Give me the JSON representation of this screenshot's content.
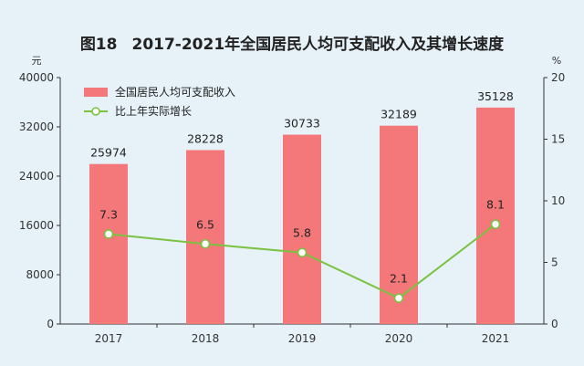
{
  "figure": {
    "label": "图18",
    "title": "2017-2021年全国居民人均可支配收入及其增长速度"
  },
  "chart_data": {
    "type": "bar",
    "categories": [
      "2017",
      "2018",
      "2019",
      "2020",
      "2021"
    ],
    "series": [
      {
        "name": "全国居民人均可支配收入",
        "type": "bar",
        "axis": "left",
        "color": "#f4787a",
        "values": [
          25974,
          28228,
          30733,
          32189,
          35128
        ],
        "labels": [
          "25974",
          "28228",
          "30733",
          "32189",
          "35128"
        ]
      },
      {
        "name": "比上年实际增长",
        "type": "line",
        "axis": "right",
        "color": "#7cc242",
        "values": [
          7.3,
          6.5,
          5.8,
          2.1,
          8.1
        ],
        "labels": [
          "7.3",
          "6.5",
          "5.8",
          "2.1",
          "8.1"
        ]
      }
    ],
    "left_axis": {
      "unit": "元",
      "ylim": [
        0,
        40000
      ],
      "ticks": [
        0,
        8000,
        16000,
        24000,
        32000,
        40000
      ],
      "tick_labels": [
        "0",
        "8000",
        "16000",
        "24000",
        "32000",
        "40000"
      ]
    },
    "right_axis": {
      "unit": "%",
      "ylim": [
        0,
        20
      ],
      "ticks": [
        0,
        5,
        10,
        15,
        20
      ],
      "tick_labels": [
        "0",
        "5",
        "10",
        "15",
        "20"
      ]
    },
    "legend_position": "top-left",
    "grid": false
  }
}
